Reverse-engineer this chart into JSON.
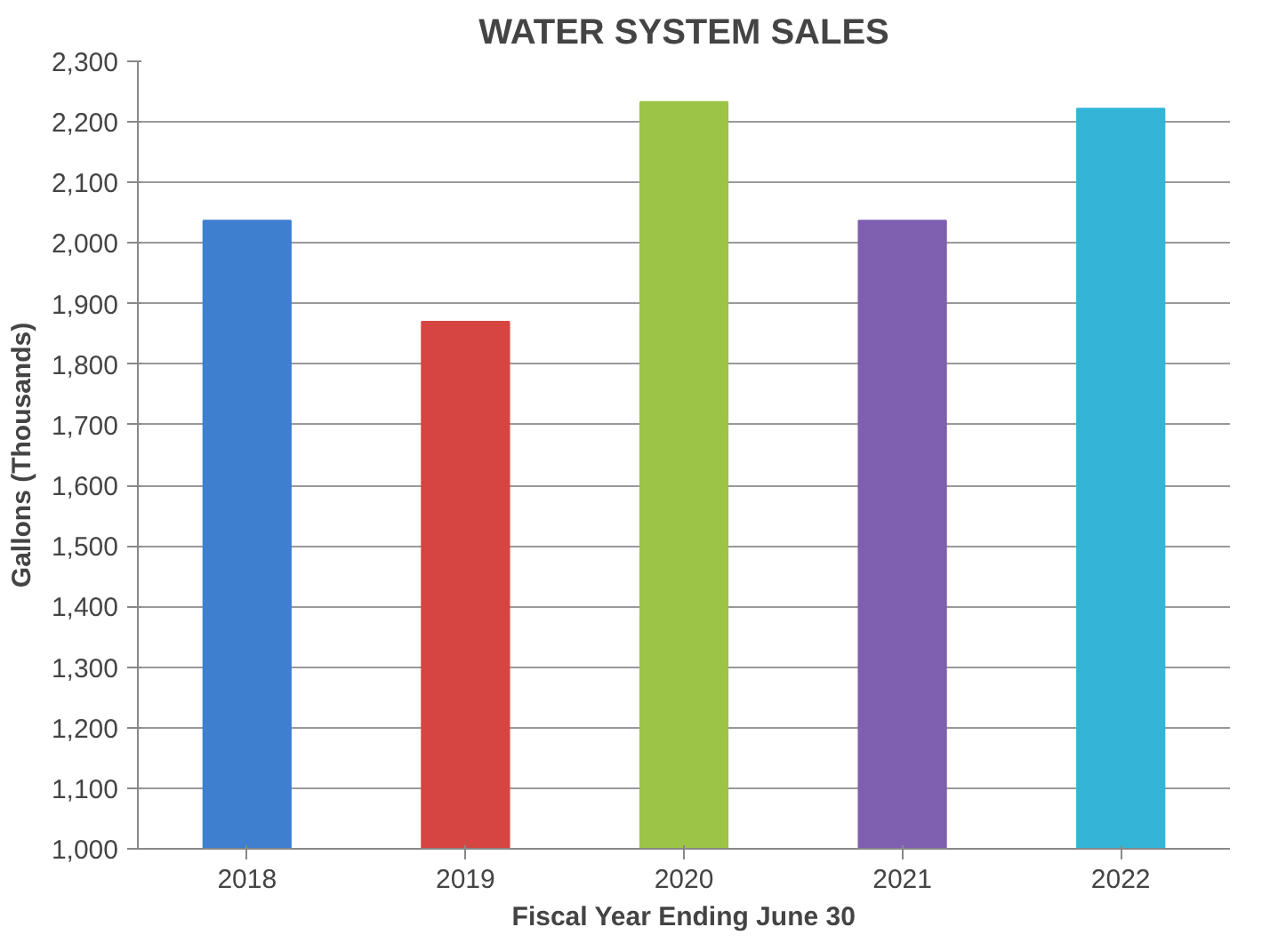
{
  "chart_data": {
    "type": "bar",
    "title": "WATER SYSTEM SALES",
    "xlabel": "Fiscal Year Ending June 30",
    "ylabel": "Gallons (Thousands)",
    "categories": [
      "2018",
      "2019",
      "2020",
      "2021",
      "2022"
    ],
    "values": [
      2037,
      1870,
      2233,
      2037,
      2222
    ],
    "colors": [
      "#3f7fd0",
      "#d64541",
      "#9cc447",
      "#7f5fb0",
      "#33b5d8"
    ],
    "ylim": [
      1000,
      2300
    ],
    "yticks": [
      {
        "value": 1000,
        "label": "1,000"
      },
      {
        "value": 1100,
        "label": "1,100"
      },
      {
        "value": 1200,
        "label": "1,200"
      },
      {
        "value": 1300,
        "label": "1,300"
      },
      {
        "value": 1400,
        "label": "1,400"
      },
      {
        "value": 1500,
        "label": "1,500"
      },
      {
        "value": 1600,
        "label": "1,600"
      },
      {
        "value": 1700,
        "label": "1,700"
      },
      {
        "value": 1800,
        "label": "1,800"
      },
      {
        "value": 1900,
        "label": "1,900"
      },
      {
        "value": 2000,
        "label": "2,000"
      },
      {
        "value": 2100,
        "label": "2,100"
      },
      {
        "value": 2200,
        "label": "2,200"
      },
      {
        "value": 2300,
        "label": "2,300"
      }
    ],
    "grid": "y"
  }
}
